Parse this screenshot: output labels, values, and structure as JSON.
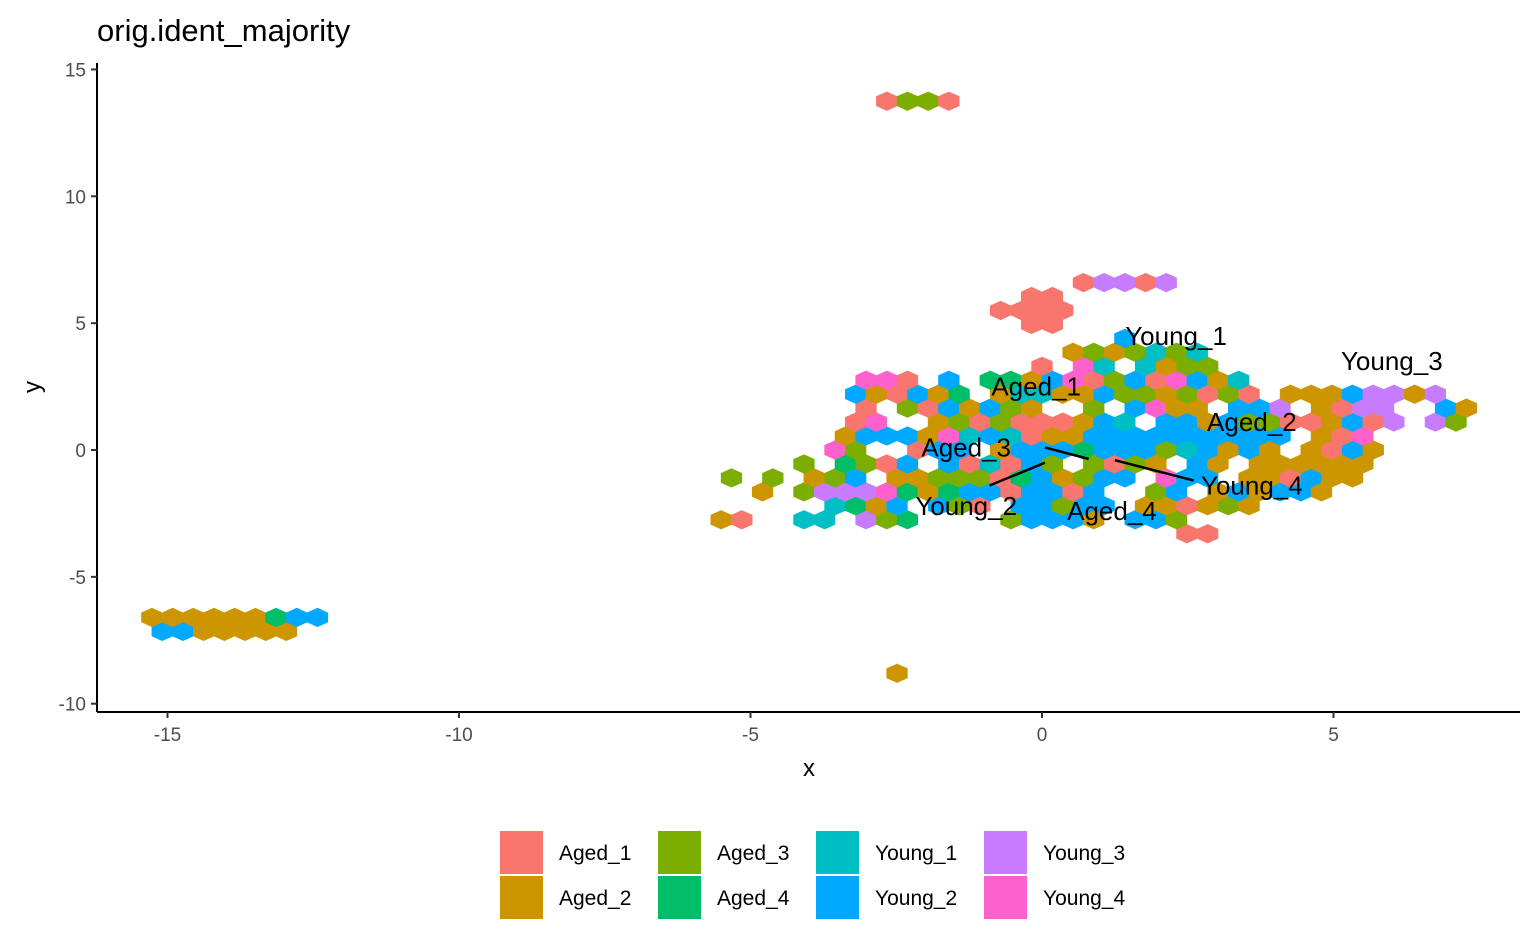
{
  "chart_data": {
    "type": "hexbin-scatter",
    "title": "orig.ident_majority",
    "xlabel": "x",
    "ylabel": "y",
    "xlim": [
      -16.3,
      8.3
    ],
    "ylim": [
      -10.3,
      15.4
    ],
    "x_ticks": [
      -15,
      -10,
      -5,
      0,
      5
    ],
    "x_tick_labels": [
      "-15",
      "-10",
      "-5",
      "0",
      "5"
    ],
    "y_ticks": [
      -10,
      -5,
      0,
      5,
      10,
      15
    ],
    "y_tick_labels": [
      "-10",
      "-5",
      "0",
      "5",
      "10",
      "15"
    ],
    "grid": false,
    "legend_position": "bottom",
    "series": [
      {
        "name": "Aged_1",
        "color": "#F8766D"
      },
      {
        "name": "Aged_2",
        "color": "#CD9600"
      },
      {
        "name": "Aged_3",
        "color": "#7CAE00"
      },
      {
        "name": "Aged_4",
        "color": "#00BE67"
      },
      {
        "name": "Young_1",
        "color": "#00BFC4"
      },
      {
        "name": "Young_2",
        "color": "#00A9FF"
      },
      {
        "name": "Young_3",
        "color": "#C77CFF"
      },
      {
        "name": "Young_4",
        "color": "#FF61CC"
      }
    ],
    "cluster_labels": [
      {
        "text": "Young_1",
        "x": 2.3,
        "y": 4.5
      },
      {
        "text": "Young_3",
        "x": 6.0,
        "y": 3.5
      },
      {
        "text": "Aged_1",
        "x": -0.1,
        "y": 2.5
      },
      {
        "text": "Aged_2",
        "x": 3.6,
        "y": 1.1
      },
      {
        "text": "Aged_3",
        "x": -1.3,
        "y": 0.1
      },
      {
        "text": "Young_4",
        "x": 3.6,
        "y": -1.4
      },
      {
        "text": "Young_2",
        "x": -1.3,
        "y": -2.2
      },
      {
        "text": "Aged_4",
        "x": 1.2,
        "y": -2.4
      }
    ],
    "label_segments": [
      {
        "from": [
          0.05,
          0.1
        ],
        "to": [
          0.8,
          -0.35
        ]
      },
      {
        "from": [
          1.25,
          -0.4
        ],
        "to": [
          2.6,
          -1.2
        ]
      },
      {
        "from": [
          -0.9,
          -1.4
        ],
        "to": [
          0.05,
          -0.5
        ]
      }
    ]
  }
}
